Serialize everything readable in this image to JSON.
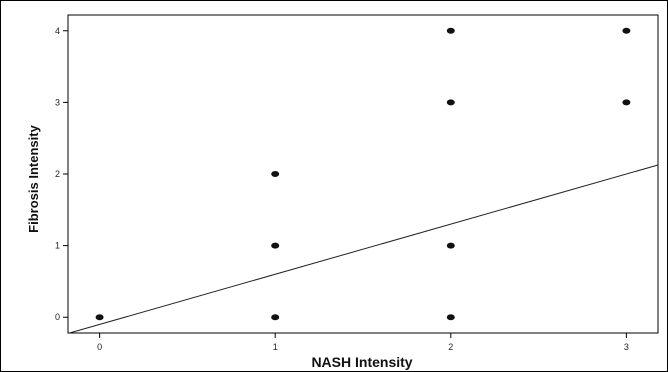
{
  "chart_data": {
    "type": "scatter",
    "title": "",
    "xlabel": "NASH Intensity",
    "ylabel": "Fibrosis Intensity",
    "xlim": [
      -0.18,
      3.18
    ],
    "ylim": [
      -0.22,
      4.22
    ],
    "x_ticks": [
      0,
      1,
      2,
      3
    ],
    "y_ticks": [
      0,
      1,
      2,
      3,
      4
    ],
    "grid": false,
    "legend": "none",
    "points": [
      {
        "x": 0,
        "y": 0
      },
      {
        "x": 1,
        "y": 0
      },
      {
        "x": 1,
        "y": 1
      },
      {
        "x": 1,
        "y": 2
      },
      {
        "x": 2,
        "y": 0
      },
      {
        "x": 2,
        "y": 1
      },
      {
        "x": 2,
        "y": 3
      },
      {
        "x": 2,
        "y": 4
      },
      {
        "x": 3,
        "y": 3
      },
      {
        "x": 3,
        "y": 4
      }
    ],
    "fit_line": {
      "intercept": -0.1,
      "slope": 0.7
    },
    "colors": {
      "points": "#111111",
      "line": "#222222",
      "frame": "#000000"
    }
  }
}
